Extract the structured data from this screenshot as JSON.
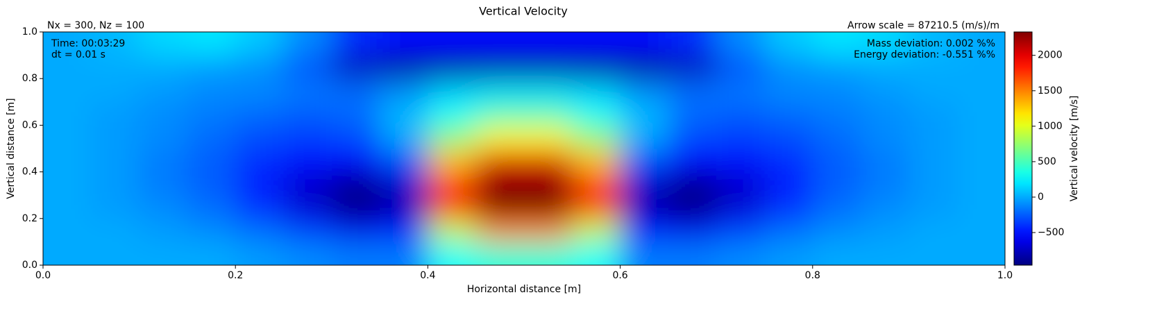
{
  "chart_data": {
    "type": "heatmap",
    "title": "Vertical Velocity",
    "subtitle_left": "Nx = 300, Nz = 100",
    "subtitle_right": "Arrow scale = 87210.5 (m/s)/m",
    "annotations_left": [
      "Time: 00:03:29",
      "dt = 0.01 s"
    ],
    "annotations_right": [
      "Mass deviation: 0.002 %%",
      "Energy deviation: -0.551 %%"
    ],
    "xlabel": "Horizontal distance [m]",
    "ylabel": "Vertical distance [m]",
    "colorbar_label": "Vertical velocity [m/s]",
    "colormap": "jet",
    "xlim": [
      0,
      1
    ],
    "ylim": [
      0,
      1
    ],
    "xticks": [
      {
        "value": 0,
        "label": "0.0"
      },
      0.2,
      0.4,
      0.6,
      0.8,
      {
        "value": 1,
        "label": "1.0"
      }
    ],
    "yticks": [
      {
        "value": 0,
        "label": "0.0"
      },
      0.2,
      0.4,
      0.6,
      0.8,
      {
        "value": 1,
        "label": "1.0"
      }
    ],
    "clim": [
      -960,
      2330
    ],
    "cticks": [
      {
        "value": -500,
        "label": "−500"
      },
      0,
      500,
      1000,
      1500,
      2000
    ],
    "x": [
      0.025,
      0.075,
      0.125,
      0.175,
      0.225,
      0.275,
      0.325,
      0.375,
      0.425,
      0.475,
      0.525,
      0.575,
      0.625,
      0.675,
      0.725,
      0.775,
      0.825,
      0.875,
      0.925,
      0.975
    ],
    "y": [
      0.05,
      0.15,
      0.25,
      0.35,
      0.45,
      0.55,
      0.65,
      0.75,
      0.85,
      0.95
    ],
    "values": [
      [
        0,
        0,
        0,
        0,
        -50,
        -100,
        -150,
        -150,
        300,
        400,
        400,
        300,
        -150,
        -150,
        -100,
        -50,
        0,
        0,
        0,
        0
      ],
      [
        0,
        0,
        -50,
        -100,
        -200,
        -350,
        -600,
        -500,
        900,
        1500,
        1500,
        900,
        -500,
        -600,
        -350,
        -200,
        -100,
        -50,
        0,
        0
      ],
      [
        0,
        -50,
        -100,
        -200,
        -400,
        -700,
        -950,
        -800,
        1800,
        2330,
        2330,
        1800,
        -800,
        -950,
        -700,
        -400,
        -200,
        -100,
        -50,
        0
      ],
      [
        0,
        -50,
        -150,
        -250,
        -450,
        -700,
        -900,
        -700,
        1700,
        2330,
        2330,
        1700,
        -700,
        -900,
        -700,
        -450,
        -250,
        -150,
        -50,
        0
      ],
      [
        0,
        -50,
        -150,
        -250,
        -400,
        -500,
        -550,
        -300,
        1300,
        2000,
        2000,
        1300,
        -300,
        -550,
        -500,
        -400,
        -250,
        -150,
        -50,
        0
      ],
      [
        0,
        -50,
        -100,
        -200,
        -300,
        -350,
        -300,
        0,
        700,
        1100,
        1100,
        700,
        0,
        -300,
        -350,
        -300,
        -200,
        -100,
        -50,
        0
      ],
      [
        0,
        -50,
        -100,
        -150,
        -200,
        -250,
        -200,
        50,
        300,
        500,
        500,
        300,
        50,
        -200,
        -250,
        -200,
        -150,
        -100,
        -50,
        0
      ],
      [
        0,
        0,
        -50,
        -100,
        -100,
        -150,
        -200,
        -100,
        100,
        150,
        150,
        100,
        -100,
        -200,
        -150,
        -100,
        -100,
        -50,
        0,
        0
      ],
      [
        0,
        0,
        0,
        -50,
        -100,
        -300,
        -800,
        -900,
        -900,
        -900,
        -900,
        -900,
        -900,
        -800,
        -300,
        -100,
        -50,
        0,
        0,
        0
      ],
      [
        0,
        50,
        150,
        200,
        100,
        -100,
        -400,
        -500,
        -500,
        -500,
        -500,
        -500,
        -500,
        -400,
        -100,
        100,
        200,
        150,
        50,
        0
      ]
    ]
  }
}
